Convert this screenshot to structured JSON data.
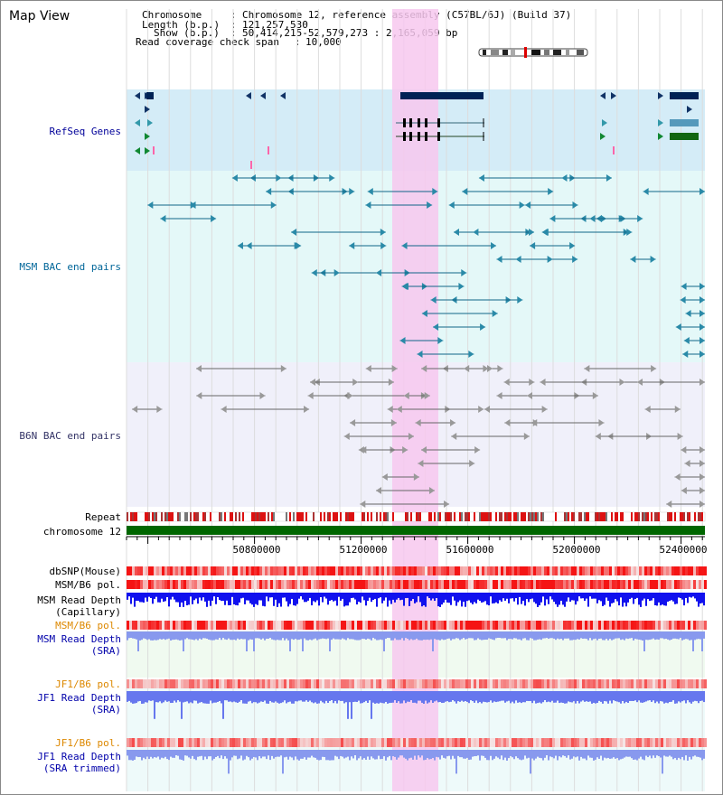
{
  "view_title": "Map View",
  "info": {
    "chromosome_key": "Chromosome",
    "chromosome_value": "Chromosome 12, reference assembly (C57BL/6J) (Build 37)",
    "length_key": "Length (b.p.)",
    "length_value": "121,257,530",
    "show_key": "Show (b.p.)",
    "show_value": "50,414,215-52,579,273 : 2,165,059 bp",
    "coverage_key": "Read coverage check span",
    "coverage_value": "10,000"
  },
  "tracks": {
    "refseq": "RefSeq Genes",
    "msm_bac": "MSM BAC end pairs",
    "b6n_bac": "B6N BAC end pairs",
    "repeat": "Repeat",
    "chromosome": "chromosome 12",
    "dbsnp": "dbSNP(Mouse)",
    "msm_b6_pol_1": "MSM/B6 pol.",
    "msm_depth_cap_1": "MSM Read Depth",
    "msm_depth_cap_2": "(Capillary)",
    "msm_b6_pol_2": "MSM/B6 pol.",
    "msm_depth_sra_1": "MSM Read Depth",
    "msm_depth_sra_2": "(SRA)",
    "jf1_b6_pol_1": "JF1/B6 pol.",
    "jf1_depth_sra_1": "JF1 Read Depth",
    "jf1_depth_sra_2": "(SRA)",
    "jf1_b6_pol_2": "JF1/B6 pol.",
    "jf1_depth_trim_1": "JF1 Read Depth",
    "jf1_depth_trim_2": "(SRA trimmed)"
  },
  "axis": {
    "ticks": [
      "50800000",
      "51200000",
      "51600000",
      "52000000",
      "52400000"
    ]
  },
  "colors": {
    "highlight": "#f7c8ee",
    "refseq_bg": "#d4ecf7",
    "msm_bg": "#e4f8f8",
    "b6n_bg": "#f0f0fa",
    "chromosome": "#006600",
    "depth": "#2222ee"
  },
  "icons": [
    "chromosome-ideogram-icon"
  ]
}
